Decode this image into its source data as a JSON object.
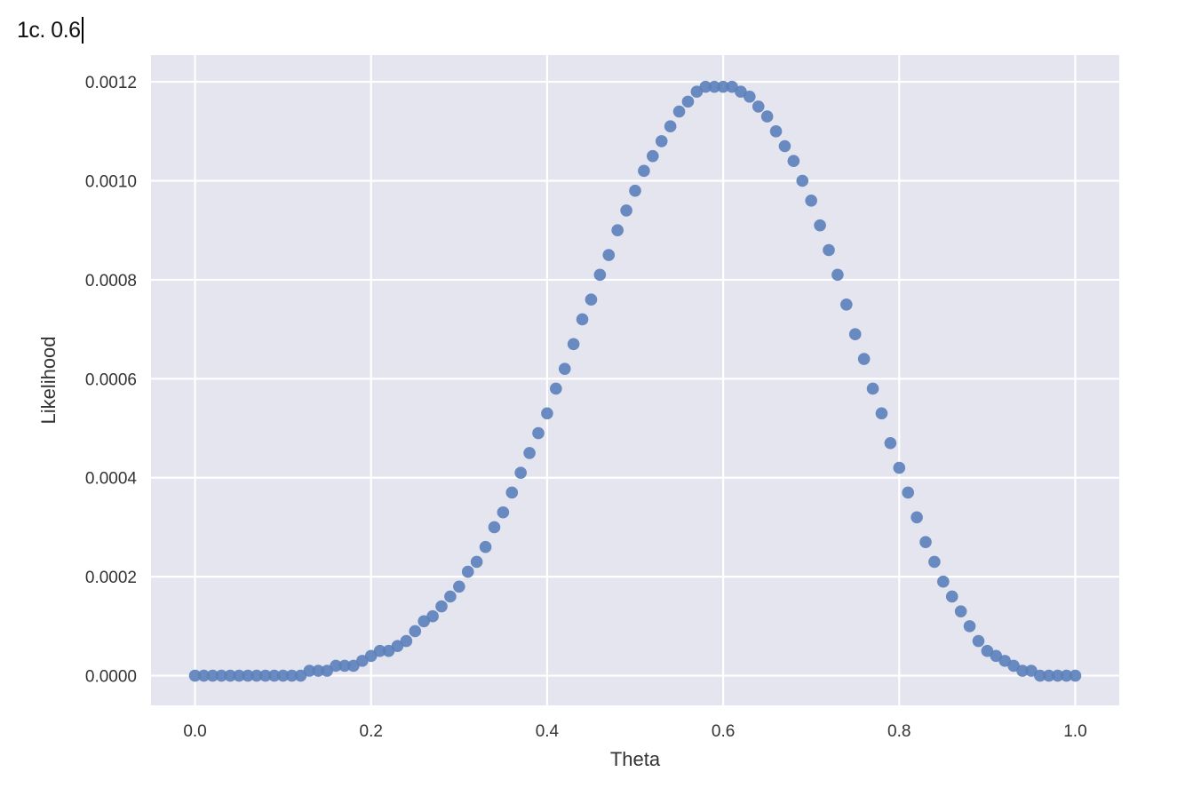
{
  "heading": {
    "text": "1c. 0.6"
  },
  "colors": {
    "plot_background": "#e5e5ef",
    "grid": "#ffffff",
    "marker": "#5b7fba"
  },
  "chart_data": {
    "type": "scatter",
    "xlabel": "Theta",
    "ylabel": "Likelihood",
    "xlim": [
      -0.05,
      1.05
    ],
    "ylim": [
      -6e-05,
      0.001254
    ],
    "xticks": [
      0.0,
      0.2,
      0.4,
      0.6,
      0.8,
      1.0
    ],
    "xtick_labels": [
      "0.0",
      "0.2",
      "0.4",
      "0.6",
      "0.8",
      "1.0"
    ],
    "yticks": [
      0.0,
      0.0002,
      0.0004,
      0.0006,
      0.0008,
      0.001,
      0.0012
    ],
    "ytick_labels": [
      "0.0000",
      "0.0002",
      "0.0004",
      "0.0006",
      "0.0008",
      "0.0010",
      "0.0012"
    ],
    "grid": true,
    "series": [
      {
        "x": [
          0.0,
          0.01,
          0.02,
          0.03,
          0.04,
          0.05,
          0.06,
          0.07,
          0.08,
          0.09,
          0.1,
          0.11,
          0.12,
          0.13,
          0.14,
          0.15,
          0.16,
          0.17,
          0.18,
          0.19,
          0.2,
          0.21,
          0.22,
          0.23,
          0.24,
          0.25,
          0.26,
          0.27,
          0.28,
          0.29,
          0.3,
          0.31,
          0.32,
          0.33,
          0.34,
          0.35,
          0.36,
          0.37,
          0.38,
          0.39,
          0.4,
          0.41,
          0.42,
          0.43,
          0.44,
          0.45,
          0.46,
          0.47,
          0.48,
          0.49,
          0.5,
          0.51,
          0.52,
          0.53,
          0.54,
          0.55,
          0.56,
          0.57,
          0.58,
          0.59,
          0.6,
          0.61,
          0.62,
          0.63,
          0.64,
          0.65,
          0.66,
          0.67,
          0.68,
          0.69,
          0.7,
          0.71,
          0.72,
          0.73,
          0.74,
          0.75,
          0.76,
          0.77,
          0.78,
          0.79,
          0.8,
          0.81,
          0.82,
          0.83,
          0.84,
          0.85,
          0.86,
          0.87,
          0.88,
          0.89,
          0.9,
          0.91,
          0.92,
          0.93,
          0.94,
          0.95,
          0.96,
          0.97,
          0.98,
          0.99,
          1.0
        ],
        "y": [
          0.0,
          0.0,
          0.0,
          0.0,
          0.0,
          0.0,
          0.0,
          0.0,
          0.0,
          0.0,
          0.0,
          0.0,
          0.0,
          1e-05,
          1e-05,
          1e-05,
          2e-05,
          2e-05,
          2e-05,
          3e-05,
          4e-05,
          5e-05,
          5e-05,
          6e-05,
          7e-05,
          9e-05,
          0.00011,
          0.00012,
          0.00014,
          0.00016,
          0.00018,
          0.00021,
          0.00023,
          0.00026,
          0.0003,
          0.00033,
          0.00037,
          0.00041,
          0.00045,
          0.00049,
          0.00053,
          0.00058,
          0.00062,
          0.00067,
          0.00072,
          0.00076,
          0.00081,
          0.00085,
          0.0009,
          0.00094,
          0.00098,
          0.00102,
          0.00105,
          0.00108,
          0.00111,
          0.00114,
          0.00116,
          0.00118,
          0.00119,
          0.00119,
          0.00119,
          0.00119,
          0.00118,
          0.00117,
          0.00115,
          0.00113,
          0.0011,
          0.00107,
          0.00104,
          0.001,
          0.00096,
          0.00091,
          0.00086,
          0.00081,
          0.00075,
          0.00069,
          0.00064,
          0.00058,
          0.00053,
          0.00047,
          0.00042,
          0.00037,
          0.00032,
          0.00027,
          0.00023,
          0.00019,
          0.00016,
          0.00013,
          0.0001,
          7e-05,
          5e-05,
          4e-05,
          3e-05,
          2e-05,
          1e-05,
          1e-05,
          0.0,
          0.0,
          0.0,
          0.0,
          0.0
        ]
      }
    ]
  }
}
